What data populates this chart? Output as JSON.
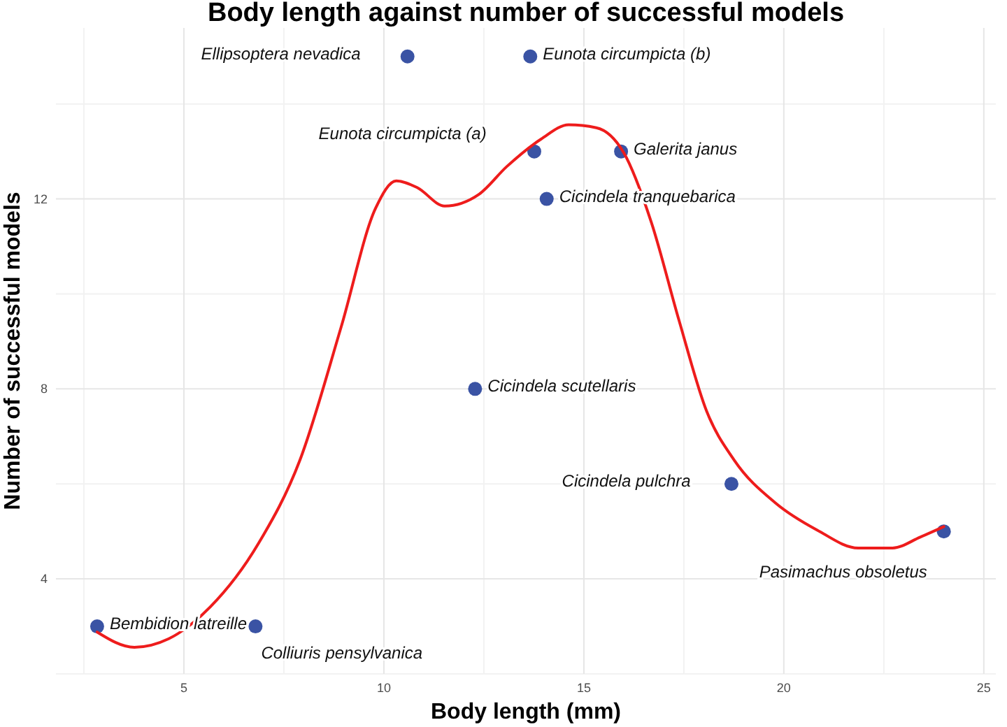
{
  "chart_data": {
    "type": "scatter",
    "title": "Body length against number of successful models",
    "xlabel": "Body length (mm)",
    "ylabel": "Number of successful models",
    "xlim": [
      1.8,
      25.3
    ],
    "ylim": [
      2,
      15.6
    ],
    "xticks": [
      5,
      10,
      15,
      20,
      25
    ],
    "yticks": [
      4,
      8,
      12
    ],
    "grid": true,
    "marker": "circle",
    "series": [
      {
        "color": "#3a53a4",
        "x": [
          2.83,
          6.79,
          10.59,
          13.66,
          13.76,
          15.93,
          14.07,
          12.28,
          18.69,
          24.0
        ],
        "values": [
          3,
          3,
          15,
          15,
          13,
          13,
          12,
          8,
          6,
          5
        ]
      },
      {
        "type": "line",
        "color": "#ee1c1c",
        "marker": "none",
        "x": [
          2.83,
          3.76,
          4.62,
          5.66,
          6.86,
          7.9,
          8.93,
          9.79,
          10.31,
          10.83,
          11.52,
          12.38,
          13.07,
          13.93,
          14.62,
          15.31,
          16.0,
          16.69,
          17.38,
          18.07,
          18.76,
          19.79,
          20.83,
          21.86,
          22.72,
          23.41,
          24.0
        ],
        "values": [
          2.88,
          2.56,
          2.74,
          3.41,
          4.74,
          6.5,
          9.3,
          11.8,
          12.38,
          12.24,
          11.85,
          12.1,
          12.68,
          13.26,
          13.56,
          13.5,
          12.97,
          11.5,
          9.44,
          7.53,
          6.5,
          5.6,
          5.03,
          4.65,
          4.65,
          4.88,
          5.1
        ]
      }
    ],
    "annotations": [
      {
        "text": "Bembidion latreille",
        "x": 2.83,
        "y": 3
      },
      {
        "text": "Colliuris pensylvanica",
        "x": 6.79,
        "y": 3
      },
      {
        "text": "Ellipsoptera nevadica",
        "x": 10.59,
        "y": 15
      },
      {
        "text": "Eunota circumpicta (b)",
        "x": 13.66,
        "y": 15
      },
      {
        "text": "Eunota circumpicta (a)",
        "x": 13.76,
        "y": 13
      },
      {
        "text": "Galerita janus",
        "x": 15.93,
        "y": 13
      },
      {
        "text": "Cicindela tranquebarica",
        "x": 14.07,
        "y": 12
      },
      {
        "text": "Cicindela scutellaris",
        "x": 12.28,
        "y": 8
      },
      {
        "text": "Cicindela pulchra",
        "x": 18.69,
        "y": 6
      },
      {
        "text": "Pasimachus obsoletus",
        "x": 24.0,
        "y": 5
      }
    ]
  }
}
